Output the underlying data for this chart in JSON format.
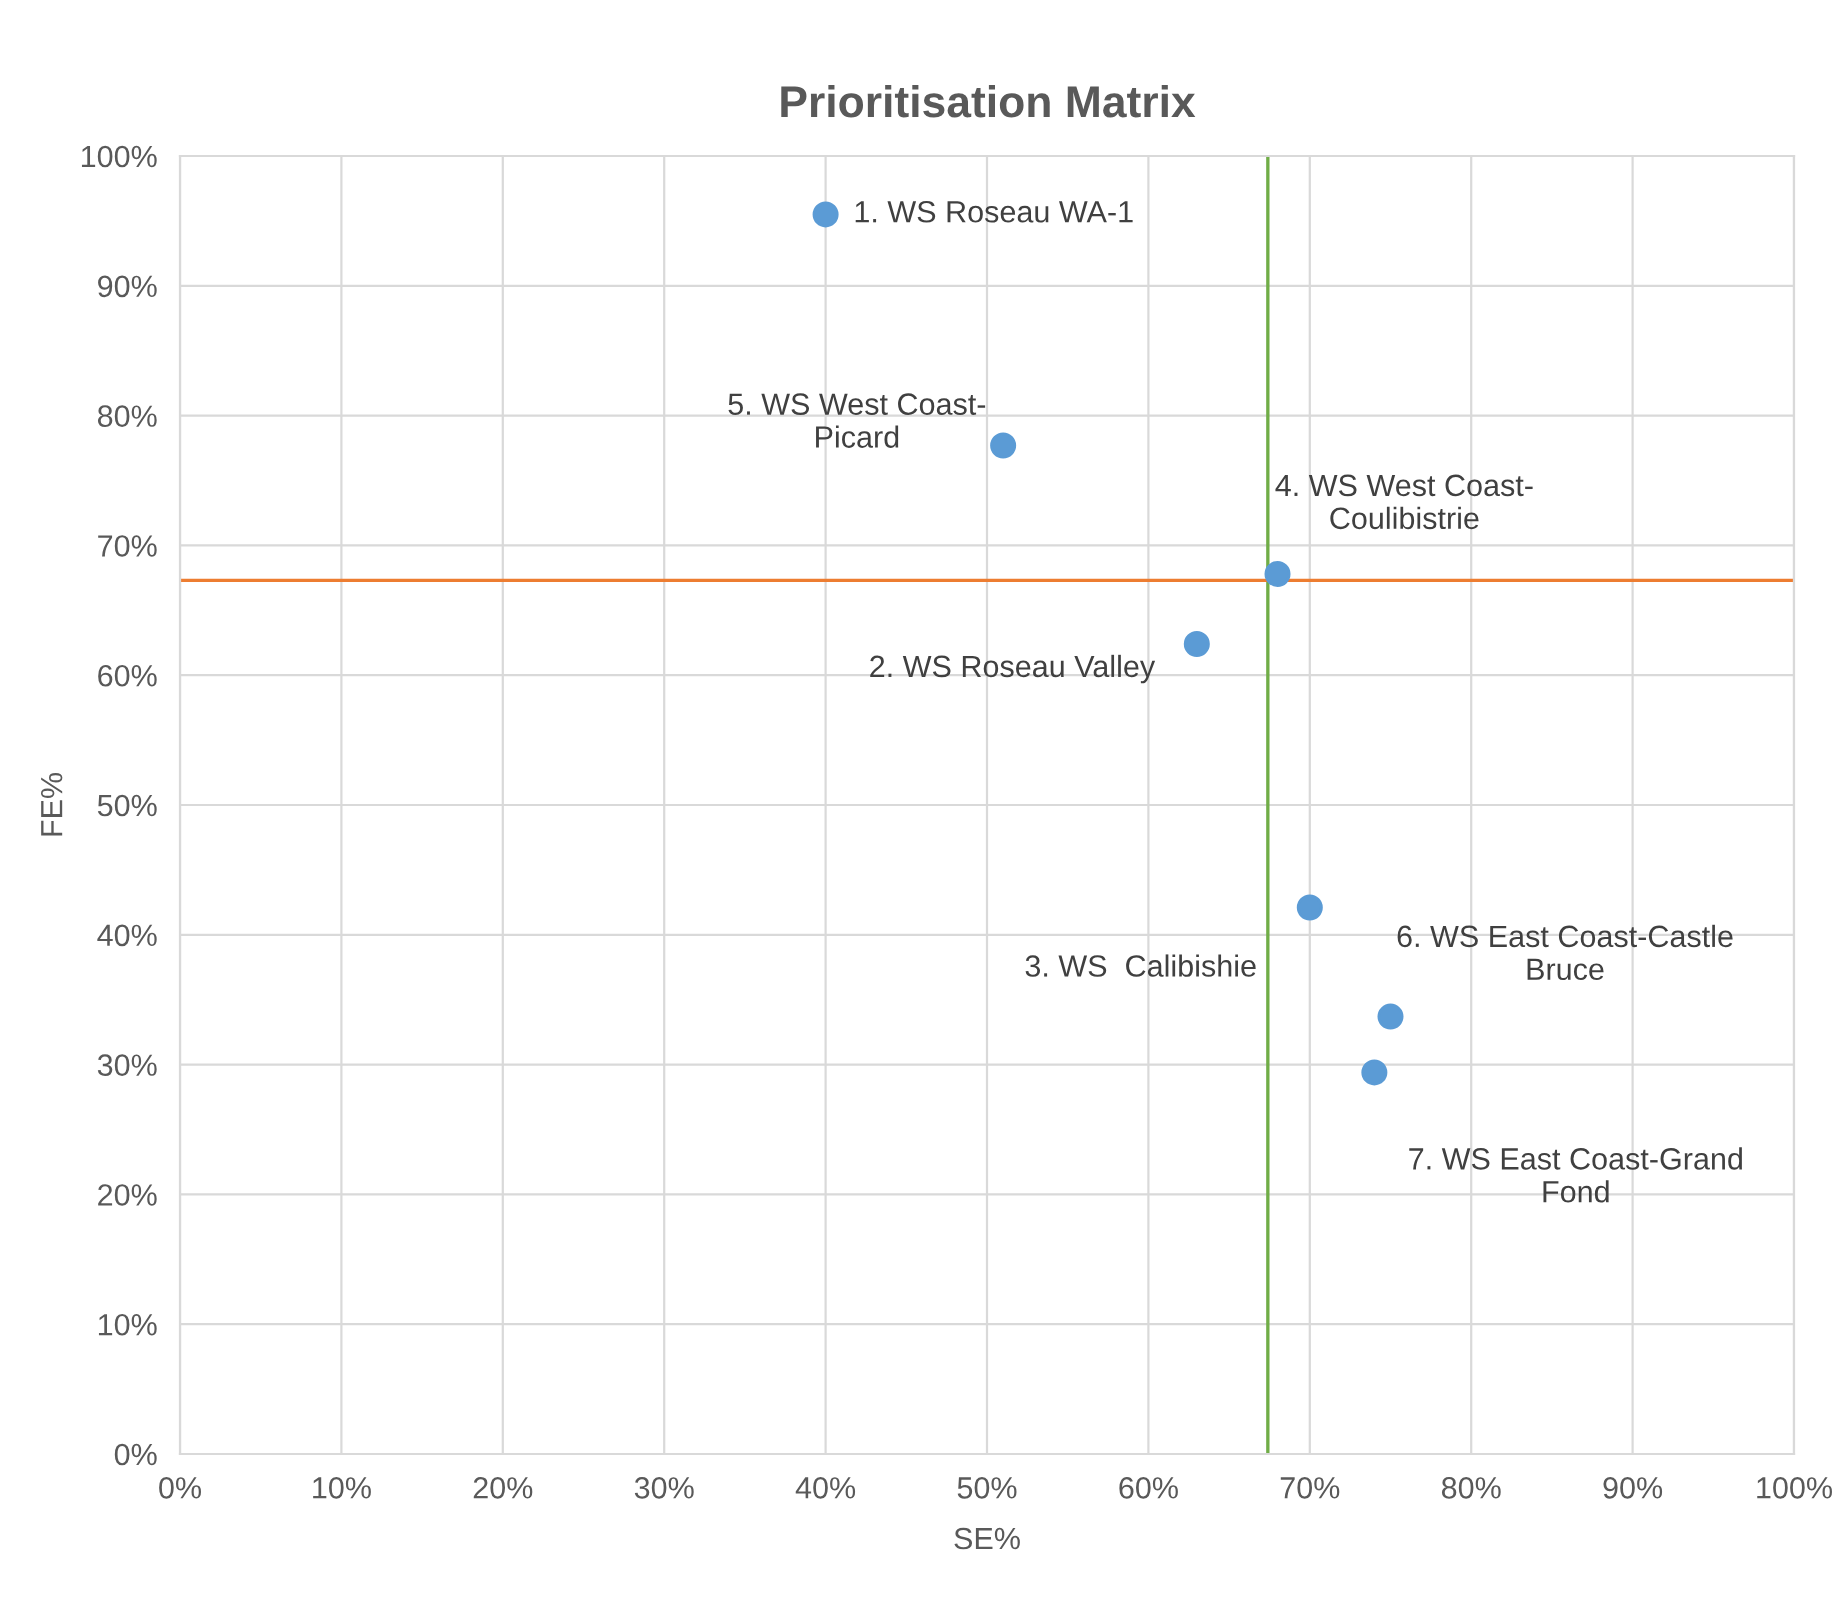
{
  "chart_data": {
    "type": "scatter",
    "title": "Prioritisation Matrix",
    "xlabel": "SE%",
    "ylabel": "FE%",
    "x": [
      40,
      51,
      68,
      63,
      70,
      75,
      74
    ],
    "series": [
      {
        "color": "#5b9bd5",
        "values": [
          95.5,
          77.7,
          67.8,
          62.4,
          42.1,
          33.7,
          29.4
        ]
      }
    ],
    "annotations": [
      {
        "text": "1. WS Roseau WA-1",
        "x": 40,
        "y": 95.5
      },
      {
        "text": "5. WS West Coast-\nPicard",
        "x": 51,
        "y": 77.7
      },
      {
        "text": "4. WS West Coast-\nCoulibistrie",
        "x": 68,
        "y": 67.8
      },
      {
        "text": "2. WS Roseau Valley",
        "x": 63,
        "y": 62.4
      },
      {
        "text": "3. WS  Calibishie",
        "x": 70,
        "y": 42.1
      },
      {
        "text": "6. WS East Coast-Castle\nBruce",
        "x": 75,
        "y": 33.7
      },
      {
        "text": "7. WS East Coast-Grand\nFond",
        "x": 74,
        "y": 29.4
      }
    ],
    "ref_lines": [
      {
        "axis": "x",
        "value": 67.4,
        "color": "#70ad47"
      },
      {
        "axis": "y",
        "value": 67.3,
        "color": "#ed7d31"
      }
    ],
    "xlim": [
      0,
      100
    ],
    "ylim": [
      0,
      100
    ],
    "xticks": [
      {
        "value": 0,
        "label": "0%"
      },
      {
        "value": 10,
        "label": "10%"
      },
      {
        "value": 20,
        "label": "20%"
      },
      {
        "value": 30,
        "label": "30%"
      },
      {
        "value": 40,
        "label": "40%"
      },
      {
        "value": 50,
        "label": "50%"
      },
      {
        "value": 60,
        "label": "60%"
      },
      {
        "value": 70,
        "label": "70%"
      },
      {
        "value": 80,
        "label": "80%"
      },
      {
        "value": 90,
        "label": "90%"
      },
      {
        "value": 100,
        "label": "100%"
      }
    ],
    "yticks": [
      {
        "value": 0,
        "label": "0%"
      },
      {
        "value": 10,
        "label": "10%"
      },
      {
        "value": 20,
        "label": "20%"
      },
      {
        "value": 30,
        "label": "30%"
      },
      {
        "value": 40,
        "label": "40%"
      },
      {
        "value": 50,
        "label": "50%"
      },
      {
        "value": 60,
        "label": "60%"
      },
      {
        "value": 70,
        "label": "70%"
      },
      {
        "value": 80,
        "label": "80%"
      },
      {
        "value": 90,
        "label": "90%"
      },
      {
        "value": 100,
        "label": "100%"
      }
    ],
    "grid": true,
    "marker": "circle"
  }
}
